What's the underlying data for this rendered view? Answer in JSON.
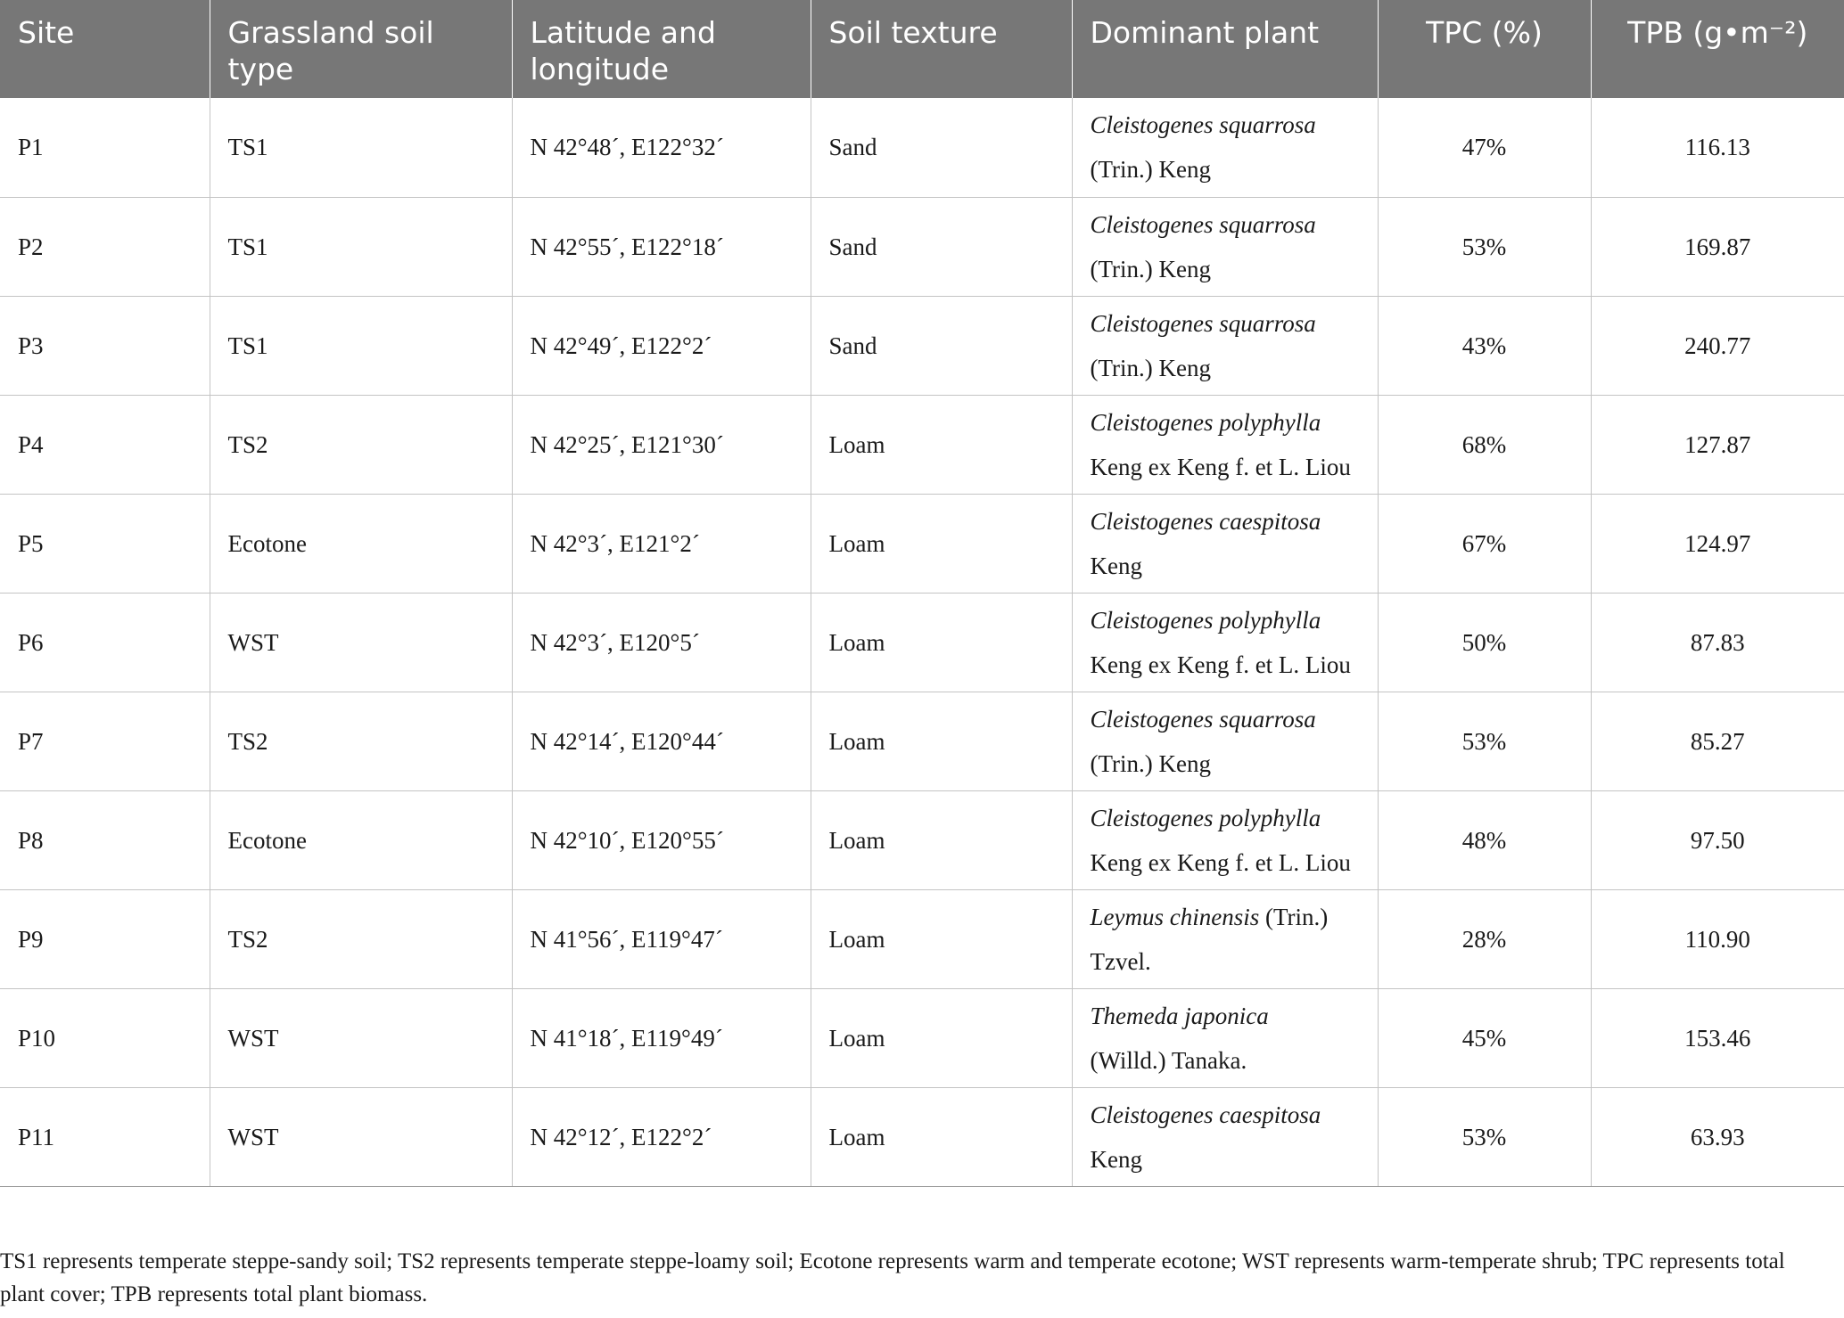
{
  "table": {
    "headers": [
      "Site",
      "Grassland soil type",
      "Latitude and longitude",
      "Soil texture",
      "Dominant plant",
      "TPC (%)",
      "TPB (g•m⁻²)"
    ],
    "rows": [
      {
        "site": "P1",
        "soil_type": "TS1",
        "coords": "N 42°48´, E122°32´",
        "texture": "Sand",
        "plant_italic": "Cleistogenes squarrosa",
        "plant_rest": "(Trin.) Keng",
        "tpc": "47%",
        "tpb": "116.13"
      },
      {
        "site": "P2",
        "soil_type": "TS1",
        "coords": "N 42°55´, E122°18´",
        "texture": "Sand",
        "plant_italic": "Cleistogenes squarrosa",
        "plant_rest": "(Trin.) Keng",
        "tpc": "53%",
        "tpb": "169.87"
      },
      {
        "site": "P3",
        "soil_type": "TS1",
        "coords": "N 42°49´, E122°2´",
        "texture": "Sand",
        "plant_italic": "Cleistogenes squarrosa",
        "plant_rest": "(Trin.) Keng",
        "tpc": "43%",
        "tpb": "240.77"
      },
      {
        "site": "P4",
        "soil_type": "TS2",
        "coords": "N 42°25´, E121°30´",
        "texture": "Loam",
        "plant_italic": "Cleistogenes polyphylla",
        "plant_rest": "Keng ex Keng f. et L. Liou",
        "tpc": "68%",
        "tpb": "127.87"
      },
      {
        "site": "P5",
        "soil_type": "Ecotone",
        "coords": "N 42°3´, E121°2´",
        "texture": "Loam",
        "plant_italic": "Cleistogenes caespitosa",
        "plant_rest": "Keng",
        "tpc": "67%",
        "tpb": "124.97"
      },
      {
        "site": "P6",
        "soil_type": "WST",
        "coords": "N 42°3´, E120°5´",
        "texture": "Loam",
        "plant_italic": "Cleistogenes polyphylla",
        "plant_rest": "Keng ex Keng f. et L. Liou",
        "tpc": "50%",
        "tpb": "87.83"
      },
      {
        "site": "P7",
        "soil_type": "TS2",
        "coords": "N 42°14´, E120°44´",
        "texture": "Loam",
        "plant_italic": "Cleistogenes squarrosa",
        "plant_rest": "(Trin.) Keng",
        "tpc": "53%",
        "tpb": "85.27"
      },
      {
        "site": "P8",
        "soil_type": "Ecotone",
        "coords": "N 42°10´, E120°55´",
        "texture": "Loam",
        "plant_italic": "Cleistogenes polyphylla",
        "plant_rest": "Keng ex Keng f. et L. Liou",
        "tpc": "48%",
        "tpb": "97.50"
      },
      {
        "site": "P9",
        "soil_type": "TS2",
        "coords": "N 41°56´, E119°47´",
        "texture": "Loam",
        "plant_italic": "Leymus chinensis",
        "plant_rest": " (Trin.) Tzvel.",
        "tpc": "28%",
        "tpb": "110.90"
      },
      {
        "site": "P10",
        "soil_type": "WST",
        "coords": "N 41°18´, E119°49´",
        "texture": "Loam",
        "plant_italic": "Themeda japonica",
        "plant_rest": "(Willd.) Tanaka.",
        "tpc": "45%",
        "tpb": "153.46"
      },
      {
        "site": "P11",
        "soil_type": "WST",
        "coords": "N 42°12´, E122°2´",
        "texture": "Loam",
        "plant_italic": "Cleistogenes caespitosa",
        "plant_rest": "Keng",
        "tpc": "53%",
        "tpb": "63.93"
      }
    ]
  },
  "footnote": "TS1 represents temperate steppe-sandy soil; TS2 represents temperate steppe-loamy soil; Ecotone represents warm and temperate ecotone; WST represents warm-temperate shrub; TPC represents total plant cover; TPB represents total plant biomass."
}
